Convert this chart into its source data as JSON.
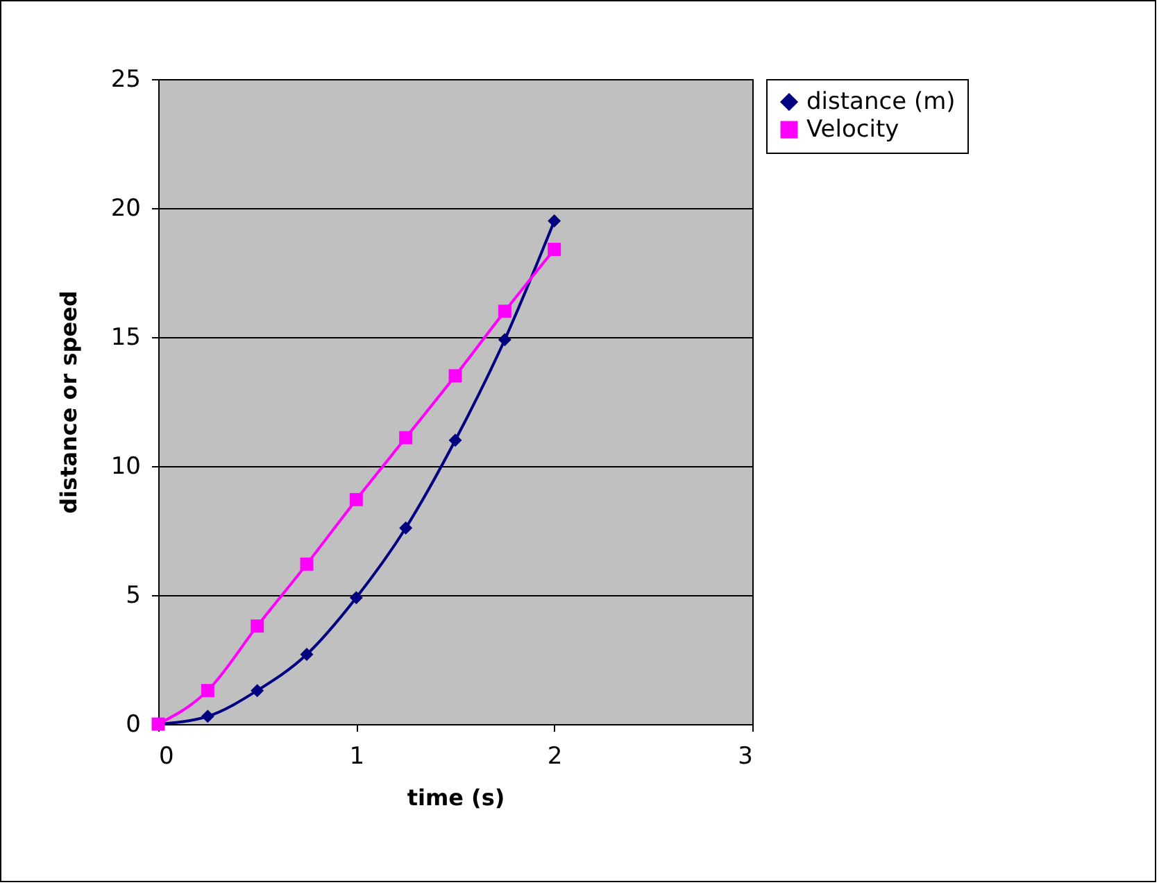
{
  "chart_data": {
    "type": "line",
    "xlabel": "time (s)",
    "ylabel": "distance or speed",
    "x": [
      0,
      0.25,
      0.5,
      0.75,
      1,
      1.25,
      1.5,
      1.75,
      2
    ],
    "series": [
      {
        "name": "distance (m)",
        "color": "#000080",
        "marker": "diamond",
        "values": [
          0,
          0.3,
          1.3,
          2.7,
          4.9,
          7.6,
          11.0,
          14.9,
          19.5
        ]
      },
      {
        "name": "Velocity",
        "color": "#ff00ff",
        "marker": "square",
        "values": [
          0,
          1.3,
          3.8,
          6.2,
          8.7,
          11.1,
          13.5,
          16.0,
          18.4
        ]
      }
    ],
    "xlim": [
      0,
      3
    ],
    "xticks": [
      0,
      1,
      2,
      3
    ],
    "ylim": [
      0,
      25
    ],
    "yticks": [
      0,
      5,
      10,
      15,
      20,
      25
    ],
    "grid": "y",
    "legend": "right",
    "line_style": "solid"
  }
}
